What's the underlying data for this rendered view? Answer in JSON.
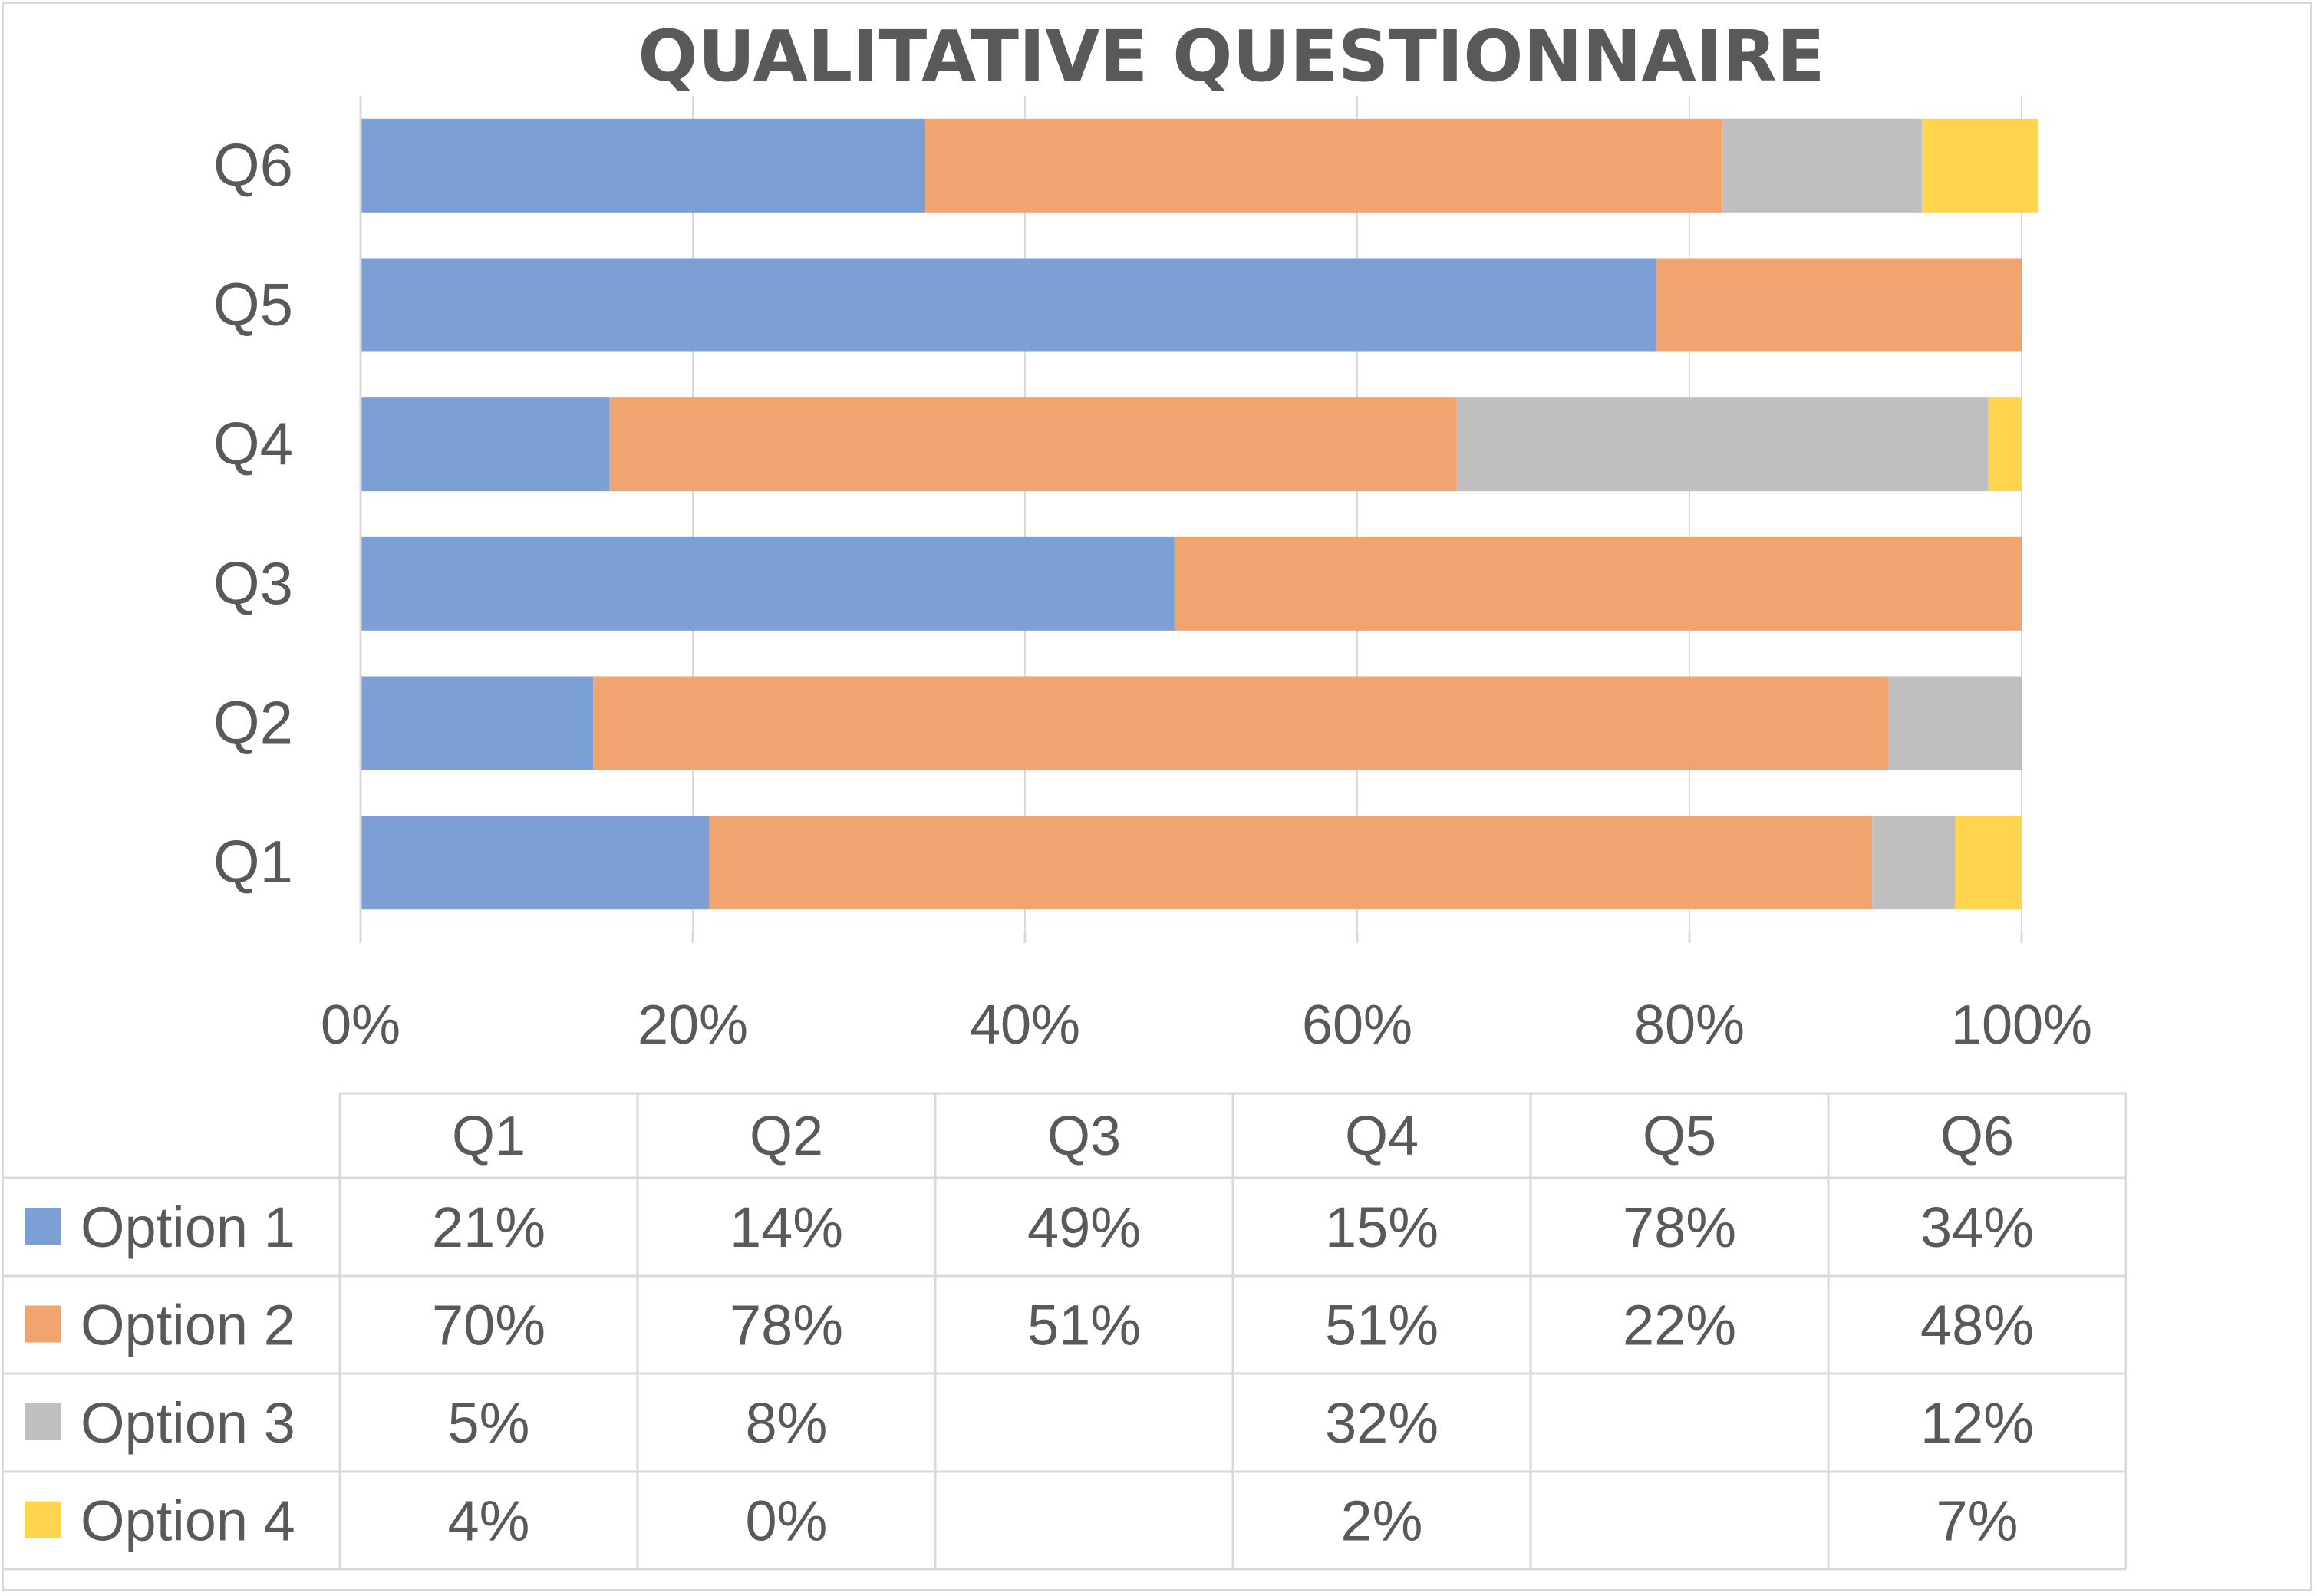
{
  "chart_data": {
    "type": "bar",
    "orientation": "horizontal",
    "stacking": "percent",
    "title": "QUALITATIVE QUESTIONNAIRE",
    "categories": [
      "Q1",
      "Q2",
      "Q3",
      "Q4",
      "Q5",
      "Q6"
    ],
    "x_ticks": [
      "0%",
      "20%",
      "40%",
      "60%",
      "80%",
      "100%"
    ],
    "xlim": [
      0,
      100
    ],
    "grid": "vertical",
    "legend": "data-table-below",
    "series": [
      {
        "name": "Option 1",
        "color": "#7c9fd6",
        "values": [
          21,
          14,
          49,
          15,
          78,
          34
        ],
        "labels": [
          "21%",
          "14%",
          "49%",
          "15%",
          "78%",
          "34%"
        ]
      },
      {
        "name": "Option 2",
        "color": "#f0a470",
        "values": [
          70,
          78,
          51,
          51,
          22,
          48
        ],
        "labels": [
          "70%",
          "78%",
          "51%",
          "51%",
          "22%",
          "48%"
        ]
      },
      {
        "name": "Option 3",
        "color": "#bfbfbf",
        "values": [
          5,
          8,
          null,
          32,
          null,
          12
        ],
        "labels": [
          "5%",
          "8%",
          "",
          "32%",
          "",
          "12%"
        ]
      },
      {
        "name": "Option 4",
        "color": "#ffd54f",
        "values": [
          4,
          0,
          null,
          2,
          null,
          7
        ],
        "labels": [
          "4%",
          "0%",
          "",
          "2%",
          "",
          "7%"
        ]
      }
    ]
  }
}
